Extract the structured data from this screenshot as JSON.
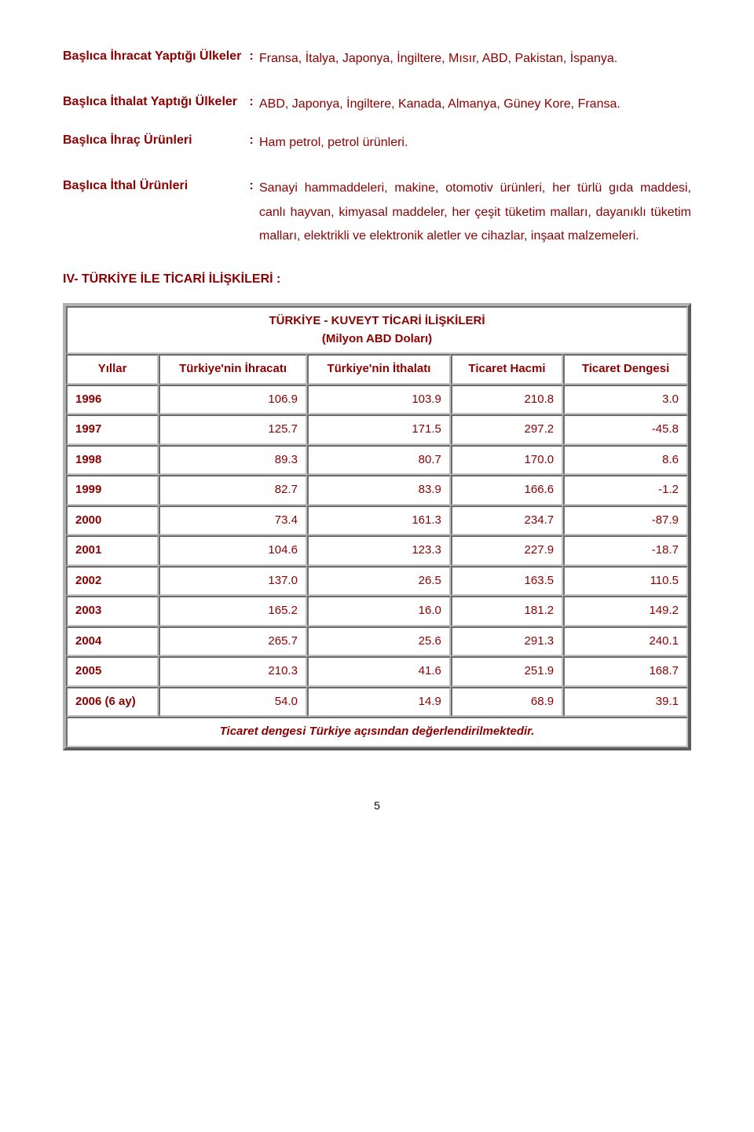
{
  "text_color": "#8b0000",
  "definitions": [
    {
      "label": "Başlıca İhracat Yaptığı Ülkeler",
      "value": "Fransa, İtalya, Japonya, İngiltere, Mısır, ABD, Pakistan, İspanya."
    },
    {
      "label": "Başlıca İthalat Yaptığı Ülkeler",
      "value": "ABD, Japonya, İngiltere, Kanada, Almanya, Güney Kore, Fransa."
    },
    {
      "label": "Başlıca İhraç Ürünleri",
      "value": "Ham petrol, petrol ürünleri."
    },
    {
      "label": "Başlıca İthal Ürünleri",
      "value": "Sanayi hammaddeleri, makine, otomotiv ürünleri, her türlü gıda maddesi, canlı hayvan, kimyasal maddeler, her çeşit tüketim malları, dayanıklı tüketim malları, elektrikli ve elektronik aletler ve cihazlar, inşaat malzemeleri."
    }
  ],
  "section_heading": "IV- TÜRKİYE İLE TİCARİ İLİŞKİLERİ :",
  "table": {
    "title_line1": "TÜRKİYE - KUVEYT TİCARİ İLİŞKİLERİ",
    "title_line2": "(Milyon ABD Doları)",
    "columns": [
      "Yıllar",
      "Türkiye'nin İhracatı",
      "Türkiye'nin İthalatı",
      "Ticaret Hacmi",
      "Ticaret Dengesi"
    ],
    "rows": [
      [
        "1996",
        "106.9",
        "103.9",
        "210.8",
        "3.0"
      ],
      [
        "1997",
        "125.7",
        "171.5",
        "297.2",
        "-45.8"
      ],
      [
        "1998",
        "89.3",
        "80.7",
        "170.0",
        "8.6"
      ],
      [
        "1999",
        "82.7",
        "83.9",
        "166.6",
        "-1.2"
      ],
      [
        "2000",
        "73.4",
        "161.3",
        "234.7",
        "-87.9"
      ],
      [
        "2001",
        "104.6",
        "123.3",
        "227.9",
        "-18.7"
      ],
      [
        "2002",
        "137.0",
        "26.5",
        "163.5",
        "110.5"
      ],
      [
        "2003",
        "165.2",
        "16.0",
        "181.2",
        "149.2"
      ],
      [
        "2004",
        "265.7",
        "25.6",
        "291.3",
        "240.1"
      ],
      [
        "2005",
        "210.3",
        "41.6",
        "251.9",
        "168.7"
      ],
      [
        "2006 (6 ay)",
        "54.0",
        "14.9",
        "68.9",
        "39.1"
      ]
    ],
    "footer": "Ticaret dengesi Türkiye açısından değerlendirilmektedir."
  },
  "page_number": "5"
}
